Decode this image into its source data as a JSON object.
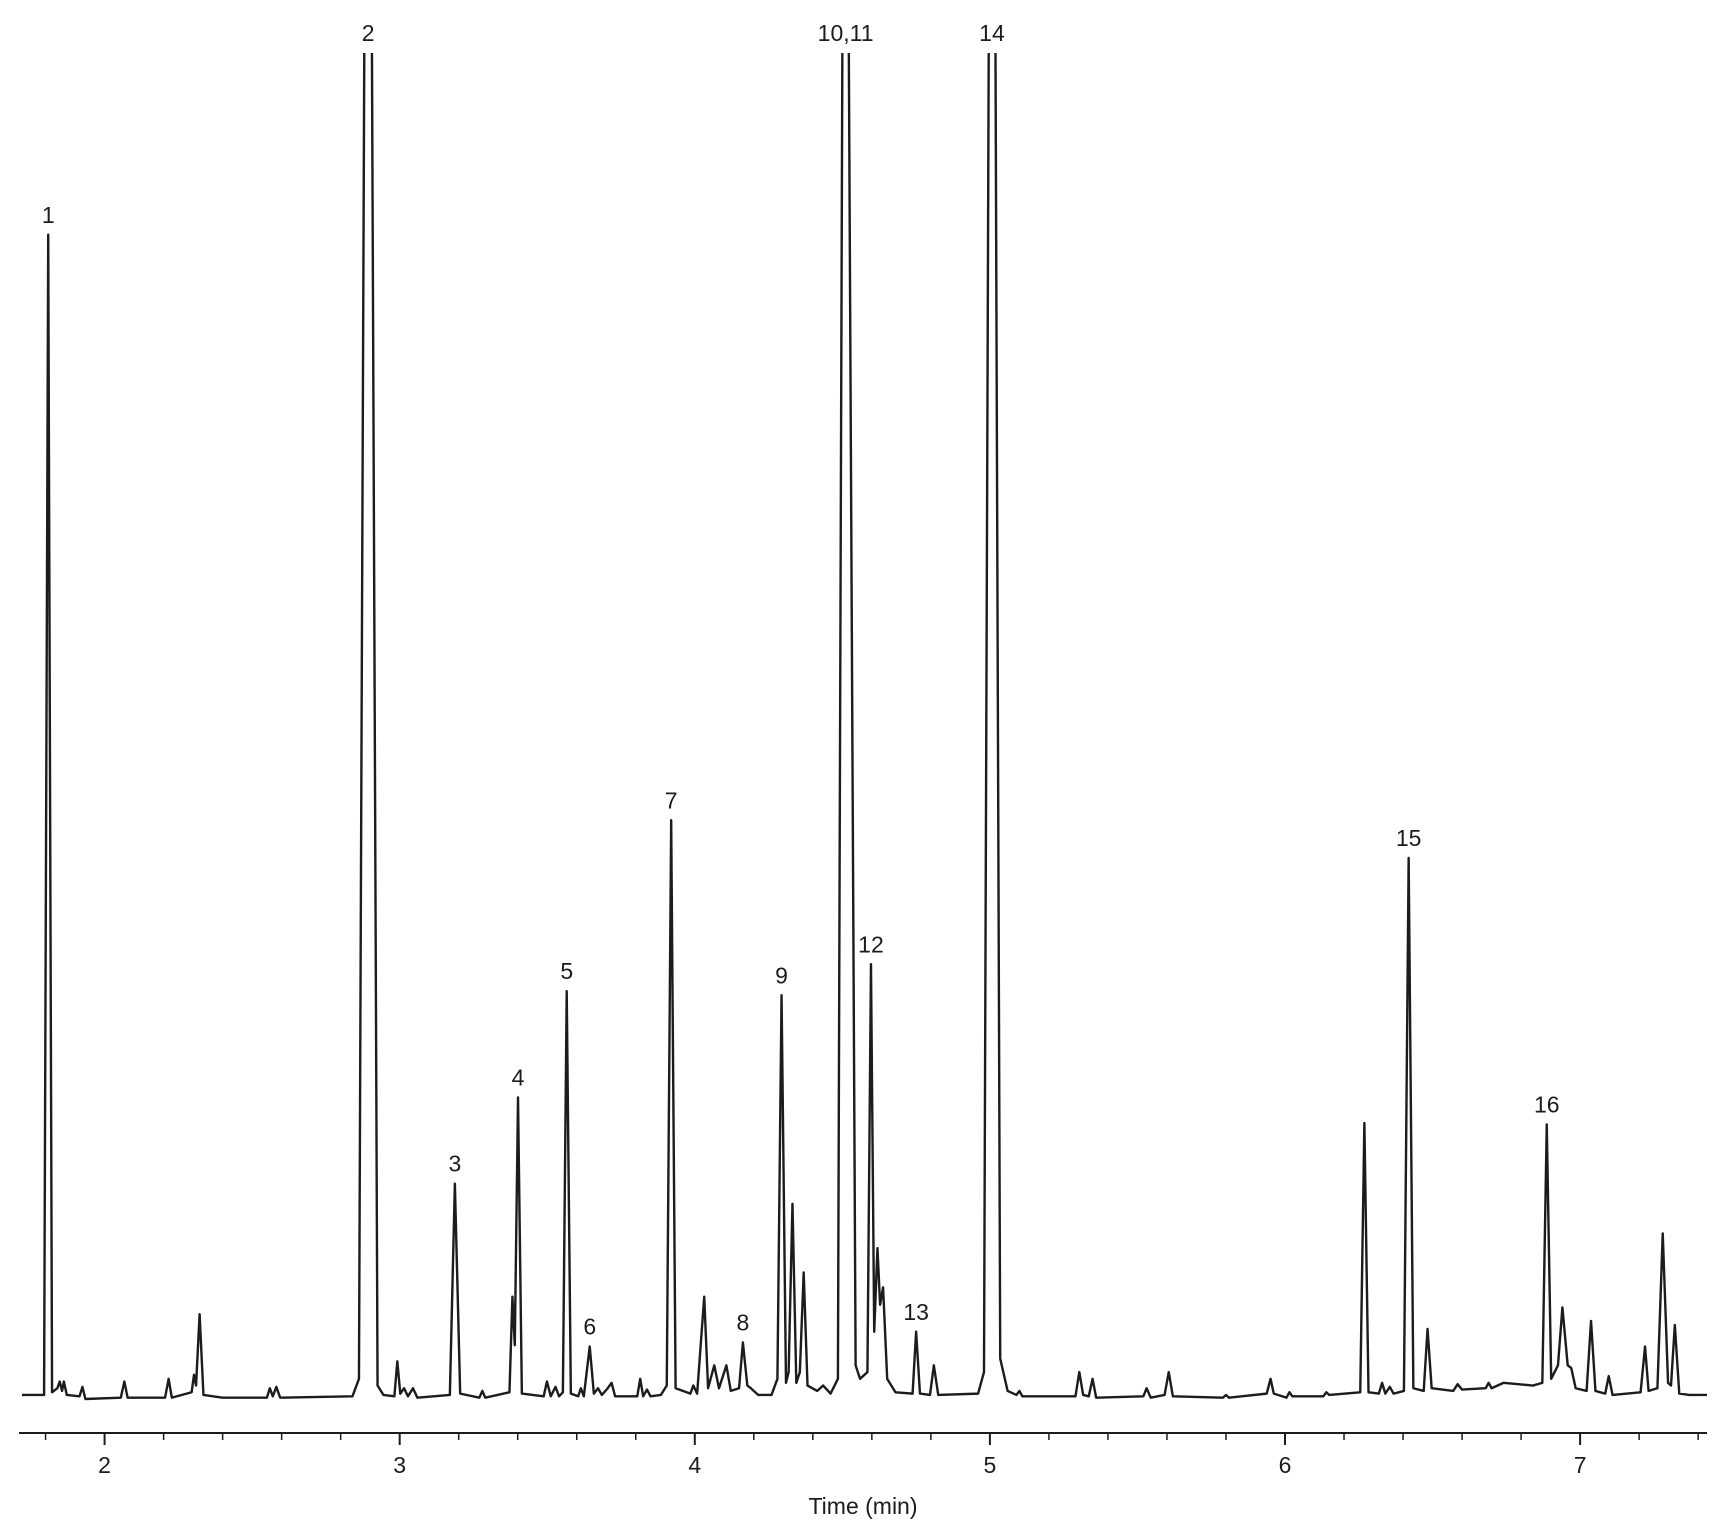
{
  "chart_data": {
    "type": "line",
    "xlabel": "Time (min)",
    "xlim": [
      1.71,
      7.43
    ],
    "ylim": [
      0,
      100
    ],
    "xticks": [
      2,
      3,
      4,
      5,
      6,
      7
    ],
    "xminorticks": [
      1.8,
      2.2,
      2.4,
      2.6,
      2.8,
      3.2,
      3.4,
      3.6,
      3.8,
      4.2,
      4.4,
      4.6,
      4.8,
      5.2,
      5.4,
      5.6,
      5.8,
      6.2,
      6.4,
      6.6,
      6.8,
      7.2,
      7.4
    ],
    "grid": false,
    "x": [
      1.72,
      1.795,
      1.809,
      1.822,
      1.84,
      1.848,
      1.856,
      1.862,
      1.872,
      1.915,
      1.925,
      1.935,
      2.055,
      2.067,
      2.078,
      2.205,
      2.217,
      2.228,
      2.295,
      2.303,
      2.31,
      2.322,
      2.335,
      2.4,
      2.55,
      2.56,
      2.57,
      2.582,
      2.595,
      2.84,
      2.862,
      2.88,
      2.893,
      2.906,
      2.925,
      2.945,
      2.982,
      2.992,
      3.002,
      3.015,
      3.028,
      3.045,
      3.06,
      3.17,
      3.187,
      3.205,
      3.27,
      3.28,
      3.29,
      3.372,
      3.382,
      3.39,
      3.401,
      3.414,
      3.488,
      3.499,
      3.512,
      3.528,
      3.54,
      3.553,
      3.566,
      3.58,
      3.605,
      3.614,
      3.624,
      3.644,
      3.658,
      3.672,
      3.685,
      3.705,
      3.718,
      3.73,
      3.805,
      3.815,
      3.825,
      3.838,
      3.85,
      3.885,
      3.905,
      3.92,
      3.935,
      3.985,
      3.995,
      4.008,
      4.032,
      4.045,
      4.066,
      4.082,
      4.107,
      4.122,
      4.15,
      4.163,
      4.178,
      4.19,
      4.215,
      4.26,
      4.28,
      4.294,
      4.309,
      4.318,
      4.331,
      4.344,
      4.356,
      4.369,
      4.382,
      4.415,
      4.435,
      4.46,
      4.485,
      4.5,
      4.511,
      4.522,
      4.545,
      4.56,
      4.585,
      4.597,
      4.608,
      4.619,
      4.628,
      4.638,
      4.652,
      4.68,
      4.738,
      4.75,
      4.763,
      4.797,
      4.81,
      4.825,
      4.96,
      4.98,
      4.996,
      5.007,
      5.019,
      5.035,
      5.06,
      5.09,
      5.1,
      5.11,
      5.29,
      5.303,
      5.316,
      5.335,
      5.348,
      5.36,
      5.52,
      5.531,
      5.545,
      5.592,
      5.606,
      5.62,
      5.79,
      5.8,
      5.81,
      5.938,
      5.951,
      5.962,
      6.005,
      6.015,
      6.025,
      6.13,
      6.14,
      6.15,
      6.255,
      6.269,
      6.283,
      6.318,
      6.329,
      6.34,
      6.355,
      6.368,
      6.403,
      6.419,
      6.435,
      6.47,
      6.483,
      6.497,
      6.57,
      6.585,
      6.6,
      6.68,
      6.69,
      6.7,
      6.74,
      6.84,
      6.872,
      6.887,
      6.902,
      6.925,
      6.94,
      6.958,
      6.97,
      6.985,
      7.022,
      7.037,
      7.052,
      7.085,
      7.097,
      7.11,
      7.205,
      7.22,
      7.232,
      7.262,
      7.28,
      7.298,
      7.308,
      7.321,
      7.336,
      7.37,
      7.43
    ],
    "series": [
      {
        "color": "#1c1c1c",
        "values": [
          0.3,
          0.3,
          86.5,
          0.5,
          0.8,
          1.3,
          0.6,
          1.3,
          0.3,
          0.2,
          0.9,
          0,
          0.1,
          1.3,
          0.1,
          0.1,
          1.5,
          0.1,
          0.5,
          1.8,
          1.0,
          6.3,
          0.3,
          0.1,
          0.1,
          0.8,
          0.2,
          0.9,
          0.1,
          0.2,
          1.5,
          100,
          null,
          100,
          1.0,
          0.3,
          0.2,
          2.8,
          0.4,
          0.8,
          0.2,
          0.8,
          0.1,
          0.3,
          16.0,
          0.4,
          0.1,
          0.6,
          0.1,
          0.5,
          7.6,
          4.0,
          22.4,
          0.4,
          0.2,
          1.3,
          0.2,
          0.9,
          0.2,
          0.5,
          30.3,
          0.4,
          0.2,
          0.8,
          0.2,
          3.9,
          0.4,
          0.8,
          0.3,
          0.8,
          1.2,
          0.2,
          0.2,
          1.5,
          0.2,
          0.7,
          0.2,
          0.3,
          1.0,
          43.0,
          0.8,
          0.4,
          1.0,
          0.4,
          7.6,
          0.8,
          2.5,
          0.8,
          2.5,
          0.6,
          0.8,
          4.2,
          1.0,
          0.8,
          0.3,
          0.3,
          1.5,
          30.0,
          1.2,
          2.0,
          14.5,
          1.2,
          2.0,
          9.4,
          1.0,
          0.6,
          1.0,
          0.4,
          1.5,
          100,
          null,
          100,
          2.5,
          1.5,
          2.0,
          32.3,
          5.0,
          11.2,
          7.0,
          8.3,
          1.5,
          0.5,
          0.4,
          5.0,
          0.4,
          0.3,
          2.5,
          0.3,
          0.4,
          2.0,
          100,
          null,
          100,
          3.0,
          0.6,
          0.3,
          0.6,
          0.2,
          0.2,
          2.0,
          0.3,
          0.2,
          1.5,
          0.1,
          0.2,
          0.8,
          0.1,
          0.3,
          2.0,
          0.2,
          0.1,
          0.3,
          0.1,
          0.4,
          1.5,
          0.4,
          0.1,
          0.5,
          0.2,
          0.2,
          0.5,
          0.3,
          0.5,
          20.5,
          0.5,
          0.4,
          1.2,
          0.4,
          0.9,
          0.4,
          0.6,
          40.2,
          0.8,
          0.6,
          5.2,
          0.8,
          0.6,
          1.1,
          0.7,
          0.8,
          1.2,
          0.8,
          1.2,
          1.0,
          1.2,
          20.4,
          1.5,
          2.5,
          6.8,
          2.5,
          2.3,
          0.8,
          0.6,
          5.8,
          0.6,
          0.4,
          1.7,
          0.3,
          0.5,
          3.9,
          0.6,
          0.8,
          12.3,
          1.2,
          1.0,
          5.5,
          0.4,
          0.3,
          0.3
        ]
      }
    ],
    "annotations": [
      {
        "text": "1",
        "x": 1.809
      },
      {
        "text": "2",
        "x": 2.893
      },
      {
        "text": "3",
        "x": 3.187
      },
      {
        "text": "4",
        "x": 3.401
      },
      {
        "text": "5",
        "x": 3.566
      },
      {
        "text": "6",
        "x": 3.644
      },
      {
        "text": "7",
        "x": 3.92
      },
      {
        "text": "8",
        "x": 4.163
      },
      {
        "text": "9",
        "x": 4.294
      },
      {
        "text": "10,11",
        "x": 4.511
      },
      {
        "text": "12",
        "x": 4.597
      },
      {
        "text": "13",
        "x": 4.75
      },
      {
        "text": "14",
        "x": 5.007
      },
      {
        "text": "15",
        "x": 6.419
      },
      {
        "text": "16",
        "x": 6.887
      }
    ]
  }
}
